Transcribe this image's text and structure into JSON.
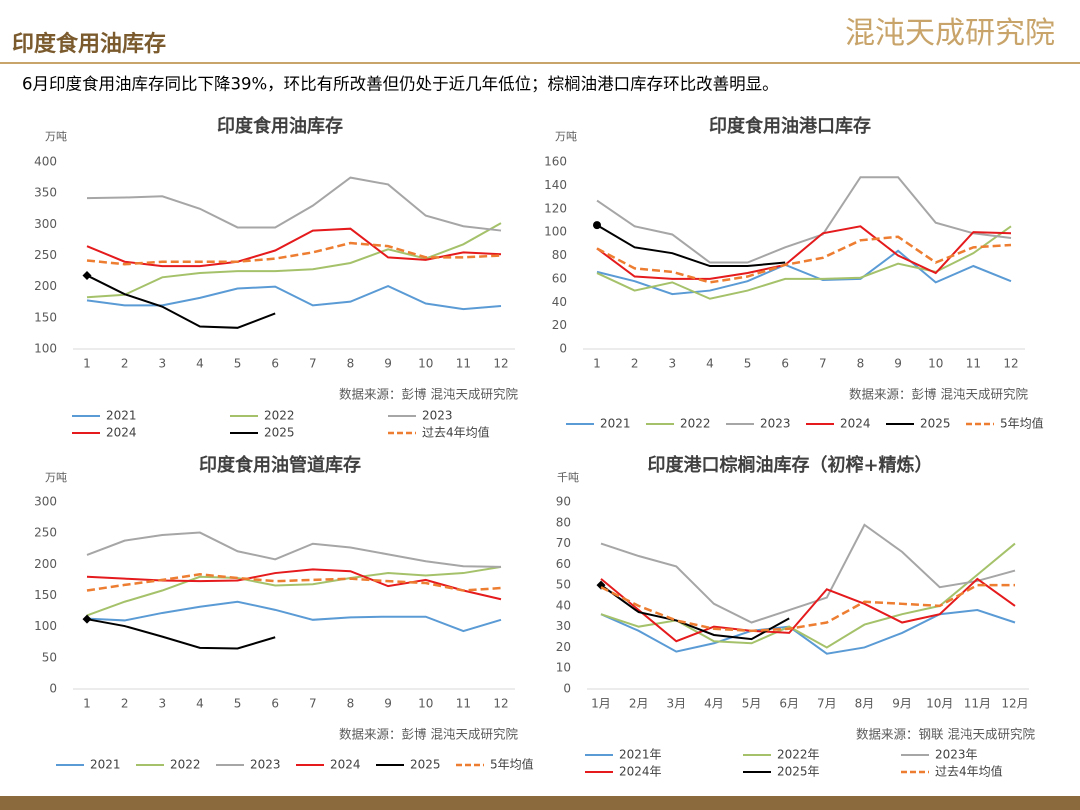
{
  "header": {
    "title": "印度食用油库存",
    "logo": "混沌天成研究院"
  },
  "summary": "6月印度食用油库存同比下降39%，环比有所改善但仍处于近几年低位；棕榈油港口库存环比改善明显。",
  "chart_data": [
    {
      "type": "line",
      "title": "印度食用油库存",
      "y_label": "万吨",
      "source": "数据来源：彭博   混沌天成研究院",
      "categories": [
        "1",
        "2",
        "3",
        "4",
        "5",
        "6",
        "7",
        "8",
        "9",
        "10",
        "11",
        "12"
      ],
      "ylim": [
        100,
        400
      ],
      "yticks": [
        100,
        150,
        200,
        250,
        300,
        350,
        400
      ],
      "series": [
        {
          "name": "2021",
          "color": "#5B9BD5",
          "values": [
            178,
            170,
            170,
            182,
            197,
            200,
            170,
            176,
            201,
            173,
            164,
            169
          ]
        },
        {
          "name": "2022",
          "color": "#A5C26B",
          "values": [
            183,
            187,
            215,
            222,
            225,
            225,
            228,
            238,
            260,
            245,
            268,
            302
          ]
        },
        {
          "name": "2023",
          "color": "#A6A6A6",
          "values": [
            342,
            343,
            345,
            325,
            295,
            295,
            330,
            375,
            364,
            314,
            297,
            290
          ]
        },
        {
          "name": "2024",
          "color": "#E41A1C",
          "values": [
            265,
            240,
            233,
            233,
            240,
            258,
            290,
            293,
            247,
            243,
            255,
            252
          ]
        },
        {
          "name": "2025",
          "color": "#000000",
          "first_marker": "diamond",
          "values": [
            218,
            188,
            168,
            136,
            134,
            157,
            null,
            null,
            null,
            null,
            null,
            null
          ]
        },
        {
          "name": "过去4年均值",
          "color": "#ED7D31",
          "dashed": true,
          "values": [
            242,
            236,
            240,
            240,
            240,
            245,
            255,
            270,
            265,
            247,
            247,
            250
          ]
        }
      ]
    },
    {
      "type": "line",
      "title": "印度食用油港口库存",
      "y_label": "万吨",
      "source": "数据来源：彭博   混沌天成研究院",
      "categories": [
        "1",
        "2",
        "3",
        "4",
        "5",
        "6",
        "7",
        "8",
        "9",
        "10",
        "11",
        "12"
      ],
      "ylim": [
        0,
        160
      ],
      "yticks": [
        0,
        20,
        40,
        60,
        80,
        100,
        120,
        140,
        160
      ],
      "series": [
        {
          "name": "2021",
          "color": "#5B9BD5",
          "values": [
            66,
            58,
            47,
            50,
            58,
            72,
            59,
            60,
            84,
            57,
            71,
            58
          ]
        },
        {
          "name": "2022",
          "color": "#A5C26B",
          "values": [
            65,
            50,
            57,
            43,
            50,
            60,
            60,
            61,
            73,
            66,
            82,
            105
          ]
        },
        {
          "name": "2023",
          "color": "#A6A6A6",
          "values": [
            127,
            105,
            98,
            74,
            74,
            87,
            98,
            147,
            147,
            108,
            99,
            95
          ]
        },
        {
          "name": "2024",
          "color": "#E41A1C",
          "values": [
            86,
            62,
            60,
            60,
            65,
            72,
            99,
            105,
            80,
            65,
            100,
            99
          ]
        },
        {
          "name": "2025",
          "color": "#000000",
          "first_marker": "circle",
          "values": [
            106,
            87,
            82,
            71,
            71,
            74,
            null,
            null,
            null,
            null,
            null,
            null
          ]
        },
        {
          "name": "5年均值",
          "color": "#ED7D31",
          "dashed": true,
          "values": [
            86,
            69,
            66,
            57,
            62,
            72,
            78,
            93,
            96,
            74,
            87,
            89
          ]
        }
      ]
    },
    {
      "type": "line",
      "title": "印度食用油管道库存",
      "y_label": "万吨",
      "source": "数据来源：彭博   混沌天成研究院",
      "categories": [
        "1",
        "2",
        "3",
        "4",
        "5",
        "6",
        "7",
        "8",
        "9",
        "10",
        "11",
        "12"
      ],
      "ylim": [
        0,
        300
      ],
      "yticks": [
        0,
        50,
        100,
        150,
        200,
        250,
        300
      ],
      "series": [
        {
          "name": "2021",
          "color": "#5B9BD5",
          "values": [
            113,
            110,
            122,
            132,
            140,
            127,
            111,
            115,
            116,
            116,
            93,
            111
          ]
        },
        {
          "name": "2022",
          "color": "#A5C26B",
          "values": [
            118,
            140,
            158,
            180,
            178,
            166,
            168,
            178,
            186,
            182,
            186,
            196
          ]
        },
        {
          "name": "2023",
          "color": "#A6A6A6",
          "values": [
            215,
            238,
            247,
            251,
            221,
            208,
            233,
            227,
            216,
            205,
            197,
            196
          ]
        },
        {
          "name": "2024",
          "color": "#E41A1C",
          "values": [
            180,
            177,
            174,
            173,
            174,
            186,
            192,
            189,
            165,
            175,
            158,
            144
          ]
        },
        {
          "name": "2025",
          "color": "#000000",
          "first_marker": "diamond",
          "values": [
            112,
            101,
            84,
            66,
            65,
            83,
            null,
            null,
            null,
            null,
            null,
            null
          ]
        },
        {
          "name": "5年均值",
          "color": "#ED7D31",
          "dashed": true,
          "values": [
            158,
            167,
            175,
            184,
            178,
            173,
            175,
            177,
            173,
            170,
            158,
            162
          ]
        }
      ]
    },
    {
      "type": "line",
      "title": "印度港口棕榈油库存（初榨+精炼）",
      "y_label": "千吨",
      "source": "数据来源：钢联   混沌天成研究院",
      "categories": [
        "1月",
        "2月",
        "3月",
        "4月",
        "5月",
        "6月",
        "7月",
        "8月",
        "9月",
        "10月",
        "11月",
        "12月"
      ],
      "ylim": [
        0,
        90
      ],
      "yticks": [
        0,
        10,
        20,
        30,
        40,
        50,
        60,
        70,
        80,
        90
      ],
      "series": [
        {
          "name": "2021年",
          "color": "#5B9BD5",
          "values": [
            36,
            28,
            18,
            22,
            28,
            30,
            17,
            20,
            27,
            36,
            38,
            32
          ]
        },
        {
          "name": "2022年",
          "color": "#A5C26B",
          "values": [
            36,
            30,
            33,
            23,
            22,
            30,
            20,
            31,
            36,
            40,
            55,
            70
          ]
        },
        {
          "name": "2023年",
          "color": "#A6A6A6",
          "values": [
            70,
            64,
            59,
            41,
            32,
            38,
            44,
            79,
            66,
            49,
            52,
            57
          ]
        },
        {
          "name": "2024年",
          "color": "#E41A1C",
          "values": [
            53,
            38,
            23,
            30,
            28,
            27,
            48,
            41,
            32,
            36,
            53,
            40
          ]
        },
        {
          "name": "2025年",
          "color": "#000000",
          "first_marker": "diamond",
          "values": [
            50,
            37,
            33,
            26,
            24,
            34,
            null,
            null,
            null,
            null,
            null,
            null
          ]
        },
        {
          "name": "过去4年均值",
          "color": "#ED7D31",
          "dashed": true,
          "values": [
            49,
            40,
            33,
            29,
            28,
            29,
            32,
            42,
            41,
            40,
            50,
            50
          ]
        }
      ]
    }
  ]
}
